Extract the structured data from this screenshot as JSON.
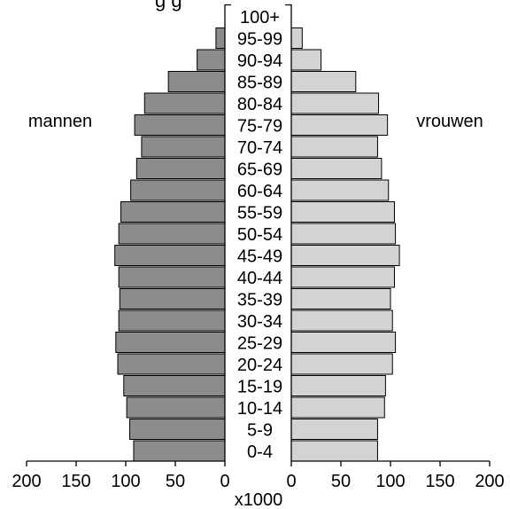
{
  "chart_data": {
    "type": "bar",
    "title_fragment": "g g",
    "left_label": "mannen",
    "right_label": "vrouwen",
    "xlabel": "x1000",
    "age_groups": [
      "0-4",
      "5-9",
      "10-14",
      "15-19",
      "20-24",
      "25-29",
      "30-34",
      "35-39",
      "40-44",
      "45-49",
      "50-54",
      "55-59",
      "60-64",
      "65-69",
      "70-74",
      "75-79",
      "80-84",
      "85-89",
      "90-94",
      "95-99",
      "100+"
    ],
    "series": [
      {
        "name": "mannen",
        "values": [
          92,
          96,
          99,
          102,
          108,
          110,
          107,
          106,
          107,
          111,
          107,
          105,
          95,
          89,
          84,
          91,
          81,
          57,
          28,
          9,
          0
        ]
      },
      {
        "name": "vrouwen",
        "values": [
          87,
          87,
          94,
          95,
          102,
          105,
          102,
          100,
          104,
          109,
          105,
          104,
          98,
          91,
          87,
          97,
          88,
          65,
          30,
          11,
          0
        ]
      }
    ],
    "xlim": [
      0,
      200
    ],
    "ticks": [
      200,
      150,
      100,
      50,
      0
    ],
    "colors": {
      "mannen": "#8c8c8c",
      "vrouwen": "#d3d3d3"
    }
  }
}
